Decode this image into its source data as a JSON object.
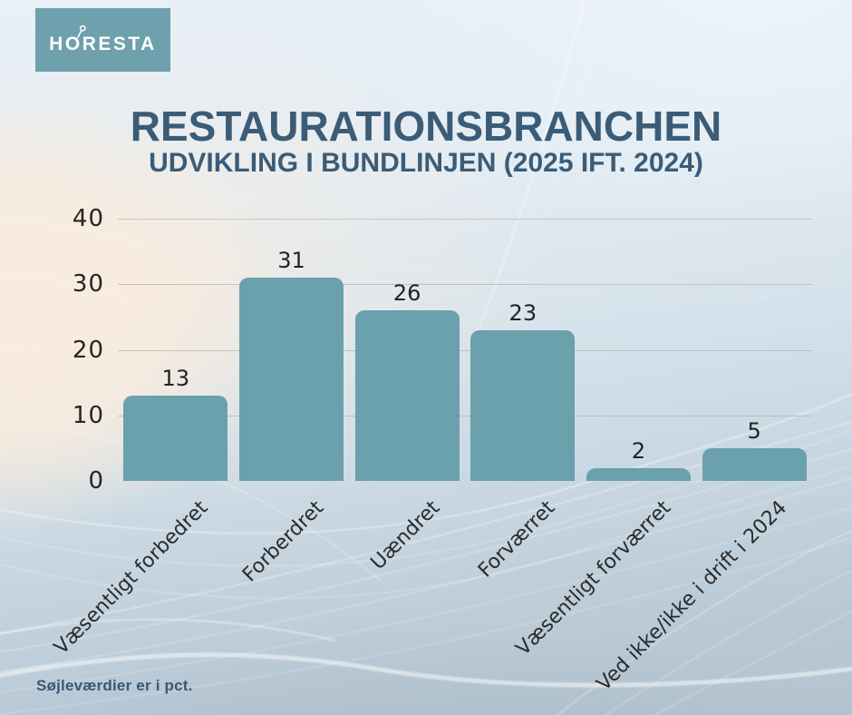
{
  "logo": {
    "part1": "H",
    "letter_o": "O",
    "part2": "RESTA"
  },
  "header": {
    "title": "RESTAURATIONSBRANCHEN",
    "subtitle": "UDVIKLING I BUNDLINJEN (2025 IFT. 2024)"
  },
  "footer": {
    "note": "Søjleværdier er i pct."
  },
  "colors": {
    "bar": "#6BA0AD",
    "logo_bg": "#6EA0AD",
    "title": "#3B5C77",
    "footer_text": "#3A5872",
    "grid": "#B6B5B2",
    "tick_label": "#262626"
  },
  "chart_data": {
    "type": "bar",
    "title": "RESTAURATIONSBRANCHEN",
    "subtitle": "UDVIKLING I BUNDLINJEN (2025 IFT. 2024)",
    "categories": [
      "Væsentligt forbedret",
      "Forberdret",
      "Uændret",
      "Forværret",
      "Væsentligt forværret",
      "Ved ikke/ikke i drift i 2024"
    ],
    "values": [
      13,
      31,
      26,
      23,
      2,
      5
    ],
    "xlabel": "",
    "ylabel": "",
    "units": "pct",
    "ylim": [
      0,
      40
    ],
    "yticks": [
      0,
      10,
      20,
      30,
      40
    ],
    "grid": true,
    "legend": false,
    "bar_color": "#6BA0AD",
    "value_labels": true,
    "note": "Søjleværdier er i pct."
  }
}
